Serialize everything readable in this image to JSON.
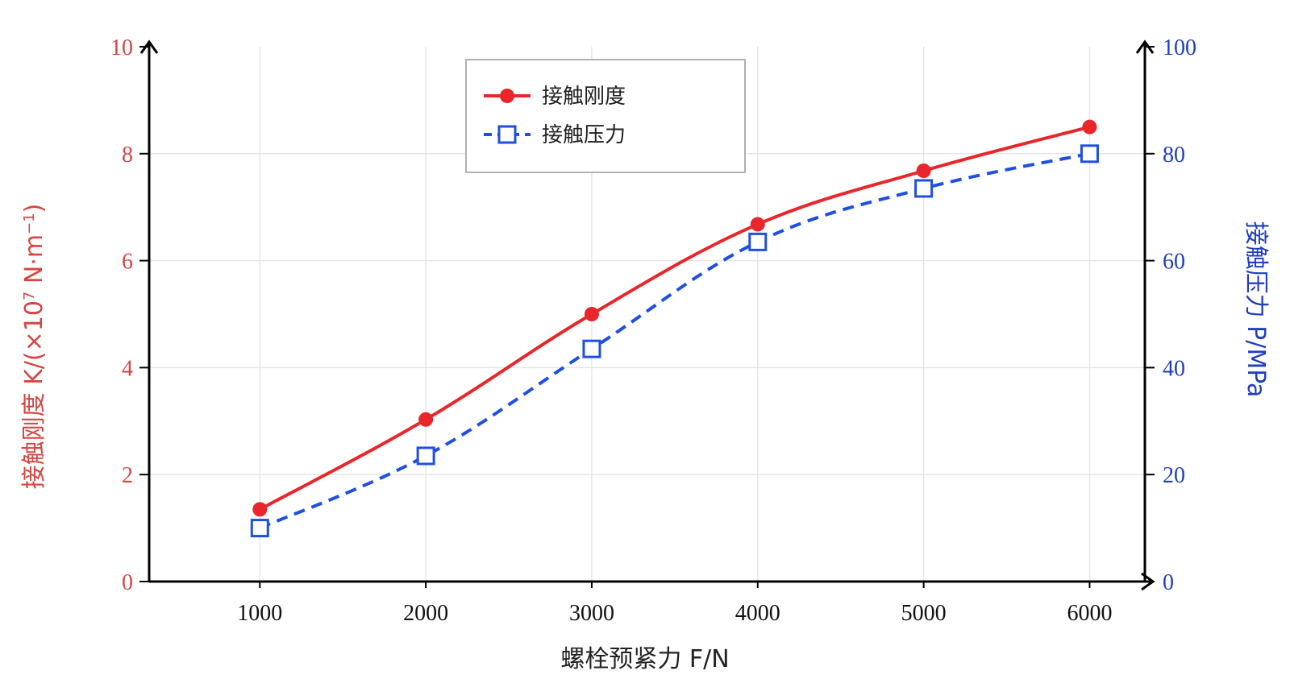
{
  "colors": {
    "left_axis": "#d64541",
    "right_axis": "#1f3fbf",
    "stiffness_line": "#e8262b",
    "pressure_line": "#1f4fe0",
    "axis": "#000000",
    "grid": "#e6e6e6",
    "legend_border": "#b0b0b0"
  },
  "chart_data": {
    "type": "line",
    "x": [
      1000,
      2000,
      3000,
      4000,
      5000,
      6000
    ],
    "xlabel": "螺栓预紧力  F/N",
    "x_ticks": [
      "1000",
      "2000",
      "3000",
      "4000",
      "5000",
      "6000"
    ],
    "xlim": [
      333,
      6333
    ],
    "y_left": {
      "label_prefix": "接触刚度  K/(×10",
      "label_exp": "7",
      "label_mid": " N·m",
      "label_exp2": "−1",
      "label_suffix": ")",
      "ylim": [
        0,
        10
      ],
      "ticks": [
        "0",
        "2",
        "4",
        "6",
        "8",
        "10"
      ]
    },
    "y_right": {
      "label": "接触压力  P/MPa",
      "ylim": [
        0,
        100
      ],
      "ticks": [
        "0",
        "20",
        "40",
        "60",
        "80",
        "100"
      ]
    },
    "series": [
      {
        "name": "接触刚度",
        "axis": "left",
        "values": [
          1.35,
          3.03,
          5.0,
          6.68,
          7.68,
          8.5
        ],
        "marker": "circle",
        "linestyle": "solid"
      },
      {
        "name": "接触压力",
        "axis": "right",
        "values": [
          10.0,
          23.5,
          43.5,
          63.5,
          73.5,
          80.0
        ],
        "marker": "square-open",
        "linestyle": "dashed"
      }
    ],
    "grid": true,
    "legend": "top-center"
  }
}
